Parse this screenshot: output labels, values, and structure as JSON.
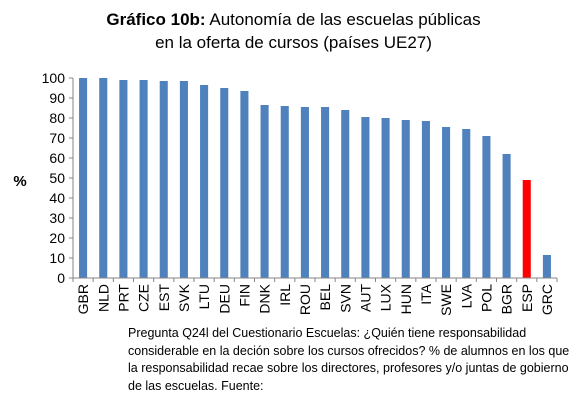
{
  "chart_data": {
    "type": "bar",
    "title_bold": "Gráfico 10b:",
    "title_rest": "Autonomía de las escuelas públicas",
    "title_line2": "en la oferta de cursos (países UE27)",
    "ylabel": "%",
    "ylim": [
      0,
      100
    ],
    "yticks": [
      0,
      10,
      20,
      30,
      40,
      50,
      60,
      70,
      80,
      90,
      100
    ],
    "grid": false,
    "categories": [
      "GBR",
      "NLD",
      "PRT",
      "CZE",
      "EST",
      "SVK",
      "LTU",
      "DEU",
      "FIN",
      "DNK",
      "IRL",
      "ROU",
      "BEL",
      "SVN",
      "AUT",
      "LUX",
      "HUN",
      "ITA",
      "SWE",
      "LVA",
      "POL",
      "BGR",
      "ESP",
      "GRC"
    ],
    "values": [
      100,
      100,
      99,
      99,
      98.5,
      98.5,
      96.5,
      95,
      93.5,
      86.5,
      86,
      85.5,
      85.5,
      84,
      80.5,
      80,
      79,
      78.5,
      75.5,
      74.5,
      71,
      62,
      49,
      11.5
    ],
    "highlight_category": "ESP",
    "bar_color": "#4f81bd",
    "highlight_color": "#ff0000"
  },
  "footnote": "Pregunta Q24l del Cuestionario Escuelas: ¿Quién tiene responsabilidad considerable en la deción sobre los cursos ofrecidos? % de alumnos en los que la responsabilidad recae sobre los directores, profesores y/o juntas de gobierno de las escuelas.  Fuente:"
}
